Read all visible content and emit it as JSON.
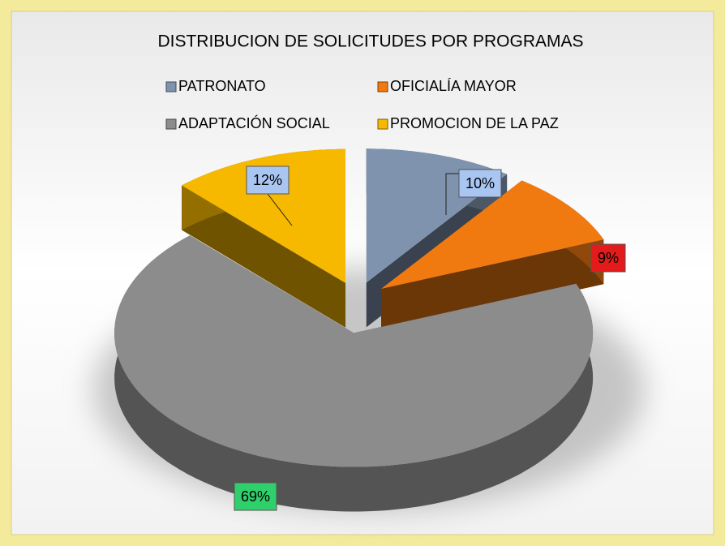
{
  "chart_data": {
    "type": "pie",
    "title": "DISTRIBUCION DE SOLICITUDES POR PROGRAMAS",
    "categories": [
      "PATRONATO",
      "OFICIALÍA MAYOR",
      "ADAPTACIÓN SOCIAL",
      "PROMOCION DE LA PAZ"
    ],
    "values": [
      10,
      9,
      69,
      12
    ],
    "value_labels": [
      "10%",
      "9%",
      "69%",
      "12%"
    ],
    "colors": [
      "#7f93ae",
      "#f07a10",
      "#8c8c8c",
      "#f7b900"
    ],
    "label_colors": [
      "#a9c6f2",
      "#e31b1b",
      "#2fd06c",
      "#a9c6f2"
    ],
    "legend": "top"
  }
}
